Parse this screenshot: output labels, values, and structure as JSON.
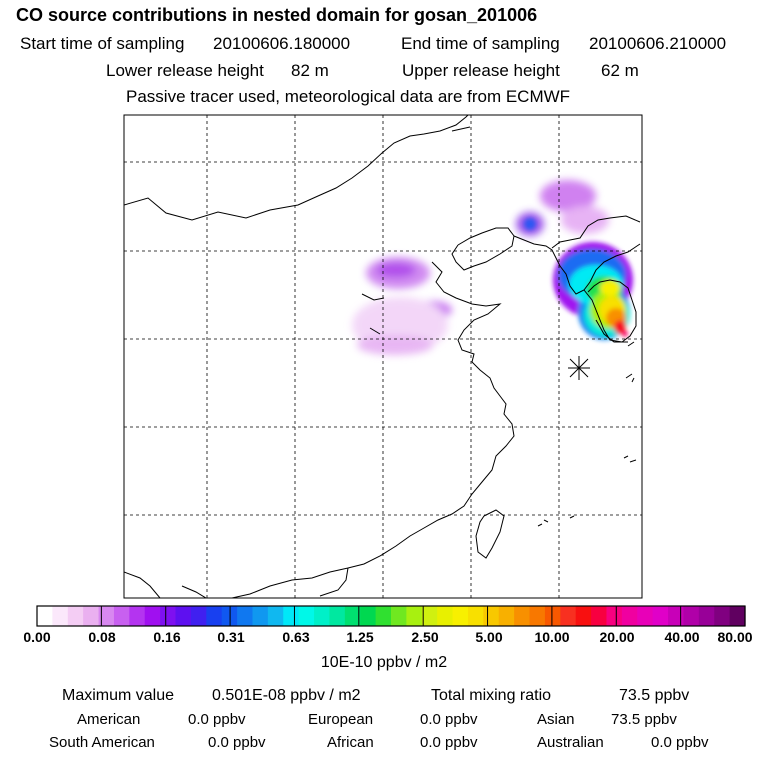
{
  "header": {
    "title": "CO  source contributions in nested domain for gosan_201006",
    "start_label": "Start time of sampling",
    "start_value": "20100606.180000",
    "end_label": "End time of sampling",
    "end_value": "20100606.210000",
    "lower_label": "Lower release height",
    "lower_value": "82 m",
    "upper_label": "Upper release height",
    "upper_value": "62 m",
    "note": "Passive tracer used, meteorological data are from ECMWF"
  },
  "colorbar": {
    "units": "10E-10 ppbv / m2",
    "ticks": [
      "0.00",
      "0.08",
      "0.16",
      "0.31",
      "0.63",
      "1.25",
      "2.50",
      "5.00",
      "10.00",
      "20.00",
      "40.00",
      "80.00"
    ],
    "colors": [
      "#ffffff",
      "#fbe8fb",
      "#f4cdf4",
      "#eab0f0",
      "#d888f0",
      "#c860f0",
      "#b434f0",
      "#a010f0",
      "#7e10f0",
      "#5e10f0",
      "#4020f0",
      "#1840f0",
      "#1058f0",
      "#1078f0",
      "#1098f0",
      "#10b8f0",
      "#00e8f8",
      "#00f8e8",
      "#00f0c8",
      "#00e8a0",
      "#00e070",
      "#00d850",
      "#30e030",
      "#70e820",
      "#a8f010",
      "#d0f010",
      "#e8f000",
      "#f8f000",
      "#f8e000",
      "#f8c800",
      "#f8b000",
      "#f89000",
      "#f87800",
      "#f85800",
      "#f83020",
      "#f81010",
      "#f80040",
      "#f80080",
      "#f000a0",
      "#e800b8",
      "#e000c8",
      "#c800b8",
      "#b000a8",
      "#980098",
      "#800080",
      "#600060"
    ]
  },
  "summary": {
    "max_label": "Maximum value",
    "max_value": "0.501E-08 ppbv / m2",
    "total_label": "Total mixing ratio",
    "total_value": "73.5 ppbv",
    "regions": [
      {
        "name": "American",
        "value": "0.0 ppbv"
      },
      {
        "name": "European",
        "value": "0.0 ppbv"
      },
      {
        "name": "Asian",
        "value": "73.5 ppbv"
      },
      {
        "name": "South American",
        "value": "0.0 ppbv"
      },
      {
        "name": "African",
        "value": "0.0 ppbv"
      },
      {
        "name": "Australian",
        "value": "0.0 ppbv"
      }
    ]
  },
  "colors": {
    "frame": "#000000",
    "grid": "#000000",
    "background": "#ffffff"
  },
  "icons": {
    "receptor": "asterisk-receptor-marker-icon"
  }
}
